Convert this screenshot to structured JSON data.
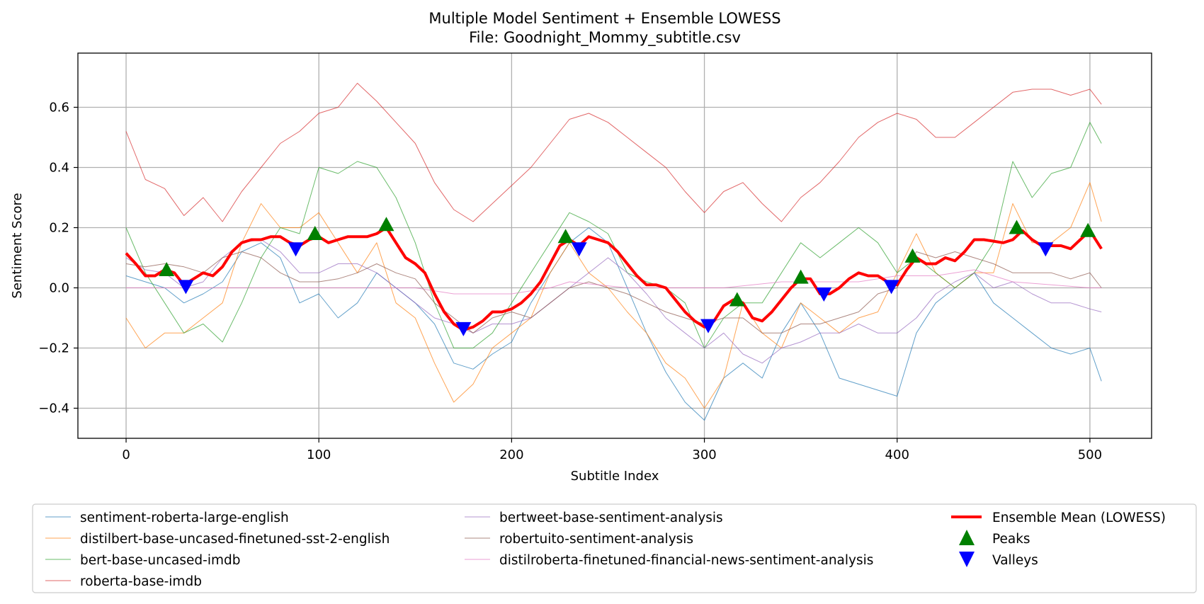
{
  "chart_data": {
    "type": "line",
    "title": "Multiple Model Sentiment + Ensemble LOWESS",
    "subtitle": "File: Goodnight_Mommy_subtitle.csv",
    "xlabel": "Subtitle Index",
    "ylabel": "Sentiment Score",
    "xlim": [
      -25,
      532
    ],
    "ylim": [
      -0.5,
      0.78
    ],
    "x_ticks": [
      0,
      100,
      200,
      300,
      400,
      500
    ],
    "y_ticks": [
      -0.4,
      -0.2,
      0.0,
      0.2,
      0.4,
      0.6
    ],
    "x_tick_labels": [
      "0",
      "100",
      "200",
      "300",
      "400",
      "500"
    ],
    "y_tick_labels": [
      "−0.4",
      "−0.2",
      "0.0",
      "0.2",
      "0.4",
      "0.6"
    ],
    "grid": true,
    "legend_position": "bottom",
    "series": [
      {
        "name": "sentiment-roberta-large-english",
        "color": "#1f77b4",
        "style": "thin",
        "x": [
          0,
          10,
          20,
          30,
          40,
          50,
          60,
          70,
          80,
          90,
          100,
          110,
          120,
          130,
          140,
          150,
          160,
          170,
          180,
          190,
          200,
          210,
          220,
          230,
          240,
          250,
          260,
          270,
          280,
          290,
          300,
          310,
          320,
          330,
          340,
          350,
          360,
          370,
          380,
          390,
          400,
          410,
          420,
          430,
          440,
          450,
          460,
          470,
          480,
          490,
          500,
          506
        ],
        "y": [
          0.04,
          0.02,
          0.0,
          -0.05,
          -0.02,
          0.02,
          0.12,
          0.15,
          0.1,
          -0.05,
          -0.02,
          -0.1,
          -0.05,
          0.05,
          0.0,
          -0.05,
          -0.12,
          -0.25,
          -0.27,
          -0.22,
          -0.18,
          -0.05,
          0.05,
          0.15,
          0.2,
          0.15,
          0.0,
          -0.15,
          -0.28,
          -0.38,
          -0.44,
          -0.3,
          -0.25,
          -0.3,
          -0.15,
          -0.05,
          -0.15,
          -0.3,
          -0.32,
          -0.34,
          -0.36,
          -0.15,
          -0.05,
          0.0,
          0.05,
          -0.05,
          -0.1,
          -0.15,
          -0.2,
          -0.22,
          -0.2,
          -0.31
        ]
      },
      {
        "name": "distilbert-base-uncased-finetuned-sst-2-english",
        "color": "#ff7f0e",
        "style": "thin",
        "x": [
          0,
          10,
          20,
          30,
          40,
          50,
          60,
          70,
          80,
          90,
          100,
          110,
          120,
          130,
          140,
          150,
          160,
          170,
          180,
          190,
          200,
          210,
          220,
          230,
          240,
          250,
          260,
          270,
          280,
          290,
          300,
          310,
          320,
          330,
          340,
          350,
          360,
          370,
          380,
          390,
          400,
          410,
          420,
          430,
          440,
          450,
          460,
          470,
          480,
          490,
          500,
          506
        ],
        "y": [
          -0.1,
          -0.2,
          -0.15,
          -0.15,
          -0.1,
          -0.05,
          0.15,
          0.28,
          0.2,
          0.2,
          0.25,
          0.15,
          0.05,
          0.15,
          -0.05,
          -0.1,
          -0.25,
          -0.38,
          -0.32,
          -0.2,
          -0.15,
          -0.1,
          0.05,
          0.15,
          0.05,
          0.0,
          -0.08,
          -0.15,
          -0.25,
          -0.3,
          -0.4,
          -0.3,
          -0.05,
          -0.15,
          -0.2,
          -0.05,
          -0.1,
          -0.15,
          -0.1,
          -0.08,
          0.05,
          0.18,
          0.05,
          0.0,
          0.05,
          0.05,
          0.28,
          0.15,
          0.15,
          0.2,
          0.35,
          0.22
        ]
      },
      {
        "name": "bert-base-uncased-imdb",
        "color": "#2ca02c",
        "style": "thin",
        "x": [
          0,
          10,
          20,
          30,
          40,
          50,
          60,
          70,
          80,
          90,
          100,
          110,
          120,
          130,
          140,
          150,
          160,
          170,
          180,
          190,
          200,
          210,
          220,
          230,
          240,
          250,
          260,
          270,
          280,
          290,
          300,
          310,
          320,
          330,
          340,
          350,
          360,
          370,
          380,
          390,
          400,
          410,
          420,
          430,
          440,
          450,
          460,
          470,
          480,
          490,
          500,
          506
        ],
        "y": [
          0.2,
          0.05,
          -0.05,
          -0.15,
          -0.12,
          -0.18,
          -0.05,
          0.1,
          0.2,
          0.18,
          0.4,
          0.38,
          0.42,
          0.4,
          0.3,
          0.15,
          -0.05,
          -0.2,
          -0.2,
          -0.15,
          -0.05,
          0.05,
          0.15,
          0.25,
          0.22,
          0.18,
          0.05,
          0.02,
          0.0,
          -0.05,
          -0.2,
          -0.1,
          -0.05,
          -0.05,
          0.05,
          0.15,
          0.1,
          0.15,
          0.2,
          0.15,
          0.05,
          0.1,
          0.05,
          0.0,
          0.05,
          0.15,
          0.42,
          0.3,
          0.38,
          0.4,
          0.55,
          0.48
        ]
      },
      {
        "name": "roberta-base-imdb",
        "color": "#d62728",
        "style": "thin",
        "x": [
          0,
          10,
          20,
          30,
          40,
          50,
          60,
          70,
          80,
          90,
          100,
          110,
          120,
          130,
          140,
          150,
          160,
          170,
          180,
          190,
          200,
          210,
          220,
          230,
          240,
          250,
          260,
          270,
          280,
          290,
          300,
          310,
          320,
          330,
          340,
          350,
          360,
          370,
          380,
          390,
          400,
          410,
          420,
          430,
          440,
          450,
          460,
          470,
          480,
          490,
          500,
          506
        ],
        "y": [
          0.52,
          0.36,
          0.33,
          0.24,
          0.3,
          0.22,
          0.32,
          0.4,
          0.48,
          0.52,
          0.58,
          0.6,
          0.68,
          0.62,
          0.55,
          0.48,
          0.35,
          0.26,
          0.22,
          0.28,
          0.34,
          0.4,
          0.48,
          0.56,
          0.58,
          0.55,
          0.5,
          0.45,
          0.4,
          0.32,
          0.25,
          0.32,
          0.35,
          0.28,
          0.22,
          0.3,
          0.35,
          0.42,
          0.5,
          0.55,
          0.58,
          0.56,
          0.5,
          0.5,
          0.55,
          0.6,
          0.65,
          0.66,
          0.66,
          0.64,
          0.66,
          0.61
        ]
      },
      {
        "name": "bertweet-base-sentiment-analysis",
        "color": "#9467bd",
        "style": "thin",
        "x": [
          0,
          10,
          20,
          30,
          40,
          50,
          60,
          70,
          80,
          90,
          100,
          110,
          120,
          130,
          140,
          150,
          160,
          170,
          180,
          190,
          200,
          210,
          220,
          230,
          240,
          250,
          260,
          270,
          280,
          290,
          300,
          310,
          320,
          330,
          340,
          350,
          360,
          370,
          380,
          390,
          400,
          410,
          420,
          430,
          440,
          450,
          460,
          470,
          480,
          490,
          500,
          506
        ],
        "y": [
          0.1,
          0.06,
          0.05,
          0.0,
          0.02,
          0.1,
          0.15,
          0.16,
          0.12,
          0.05,
          0.05,
          0.08,
          0.08,
          0.05,
          0.0,
          -0.05,
          -0.1,
          -0.12,
          -0.15,
          -0.12,
          -0.12,
          -0.1,
          -0.05,
          0.0,
          0.05,
          0.1,
          0.05,
          -0.02,
          -0.1,
          -0.15,
          -0.2,
          -0.15,
          -0.22,
          -0.25,
          -0.2,
          -0.18,
          -0.15,
          -0.15,
          -0.12,
          -0.15,
          -0.15,
          -0.1,
          -0.02,
          0.02,
          0.05,
          0.0,
          0.02,
          -0.02,
          -0.05,
          -0.05,
          -0.07,
          -0.08
        ]
      },
      {
        "name": "robertuito-sentiment-analysis",
        "color": "#8c564b",
        "style": "thin",
        "x": [
          0,
          10,
          20,
          30,
          40,
          50,
          60,
          70,
          80,
          90,
          100,
          110,
          120,
          130,
          140,
          150,
          160,
          170,
          180,
          190,
          200,
          210,
          220,
          230,
          240,
          250,
          260,
          270,
          280,
          290,
          300,
          310,
          320,
          330,
          340,
          350,
          360,
          370,
          380,
          390,
          400,
          410,
          420,
          430,
          440,
          450,
          460,
          470,
          480,
          490,
          500,
          506
        ],
        "y": [
          0.08,
          0.07,
          0.08,
          0.07,
          0.05,
          0.1,
          0.12,
          0.1,
          0.05,
          0.02,
          0.02,
          0.03,
          0.05,
          0.08,
          0.05,
          0.03,
          -0.05,
          -0.1,
          -0.15,
          -0.1,
          -0.08,
          -0.1,
          -0.05,
          0.0,
          0.02,
          0.0,
          -0.02,
          -0.05,
          -0.08,
          -0.1,
          -0.12,
          -0.1,
          -0.1,
          -0.15,
          -0.15,
          -0.12,
          -0.12,
          -0.1,
          -0.08,
          -0.02,
          0.0,
          0.12,
          0.1,
          0.12,
          0.1,
          0.08,
          0.05,
          0.05,
          0.05,
          0.03,
          0.05,
          0.0
        ]
      },
      {
        "name": "distilroberta-finetuned-financial-news-sentiment-analysis",
        "color": "#e377c2",
        "style": "thin",
        "x": [
          0,
          50,
          100,
          150,
          170,
          200,
          220,
          230,
          260,
          300,
          310,
          340,
          380,
          400,
          420,
          440,
          460,
          500,
          506
        ],
        "y": [
          0.0,
          0.0,
          0.0,
          0.0,
          -0.02,
          -0.02,
          0.0,
          0.02,
          0.0,
          0.0,
          0.0,
          0.02,
          0.02,
          0.04,
          0.04,
          0.06,
          0.02,
          0.0,
          0.0
        ]
      },
      {
        "name": "Ensemble Mean (LOWESS)",
        "color": "#ff0000",
        "style": "thick",
        "x": [
          0,
          5,
          10,
          15,
          20,
          25,
          30,
          35,
          40,
          45,
          50,
          55,
          60,
          65,
          70,
          75,
          80,
          85,
          90,
          95,
          100,
          105,
          110,
          115,
          120,
          125,
          130,
          135,
          140,
          145,
          150,
          155,
          160,
          165,
          170,
          175,
          180,
          185,
          190,
          195,
          200,
          205,
          210,
          215,
          220,
          225,
          230,
          235,
          240,
          245,
          250,
          255,
          260,
          265,
          270,
          275,
          280,
          285,
          290,
          295,
          300,
          305,
          310,
          315,
          320,
          325,
          330,
          335,
          340,
          345,
          350,
          355,
          360,
          365,
          370,
          375,
          380,
          385,
          390,
          395,
          400,
          405,
          410,
          415,
          420,
          425,
          430,
          435,
          440,
          445,
          450,
          455,
          460,
          465,
          470,
          475,
          480,
          485,
          490,
          495,
          500,
          506
        ],
        "y": [
          0.115,
          0.08,
          0.04,
          0.04,
          0.06,
          0.05,
          0.01,
          0.03,
          0.05,
          0.04,
          0.07,
          0.12,
          0.15,
          0.16,
          0.16,
          0.17,
          0.17,
          0.15,
          0.14,
          0.16,
          0.17,
          0.15,
          0.16,
          0.17,
          0.17,
          0.17,
          0.18,
          0.2,
          0.15,
          0.1,
          0.08,
          0.05,
          -0.02,
          -0.08,
          -0.12,
          -0.14,
          -0.13,
          -0.11,
          -0.08,
          -0.08,
          -0.07,
          -0.05,
          -0.02,
          0.02,
          0.08,
          0.14,
          0.16,
          0.14,
          0.17,
          0.16,
          0.15,
          0.12,
          0.08,
          0.04,
          0.01,
          0.01,
          0.0,
          -0.04,
          -0.08,
          -0.11,
          -0.13,
          -0.11,
          -0.06,
          -0.04,
          -0.05,
          -0.1,
          -0.11,
          -0.08,
          -0.04,
          0.0,
          0.03,
          0.03,
          -0.02,
          -0.02,
          0.0,
          0.03,
          0.05,
          0.04,
          0.04,
          0.02,
          0.01,
          0.06,
          0.1,
          0.08,
          0.08,
          0.1,
          0.09,
          0.12,
          0.16,
          0.16,
          0.155,
          0.15,
          0.16,
          0.19,
          0.16,
          0.14,
          0.14,
          0.14,
          0.13,
          0.16,
          0.19,
          0.13
        ]
      }
    ],
    "peaks": {
      "name": "Peaks",
      "color": "#008000",
      "x": [
        21,
        98,
        135,
        228,
        317,
        350,
        408,
        462,
        499
      ],
      "y": [
        0.06,
        0.18,
        0.21,
        0.17,
        -0.04,
        0.035,
        0.105,
        0.2,
        0.19
      ]
    },
    "valleys": {
      "name": "Valleys",
      "color": "#0000ff",
      "x": [
        31,
        88,
        175,
        235,
        302,
        362,
        397,
        477
      ],
      "y": [
        0.005,
        0.13,
        -0.135,
        0.13,
        -0.125,
        -0.02,
        0.005,
        0.13
      ]
    }
  }
}
